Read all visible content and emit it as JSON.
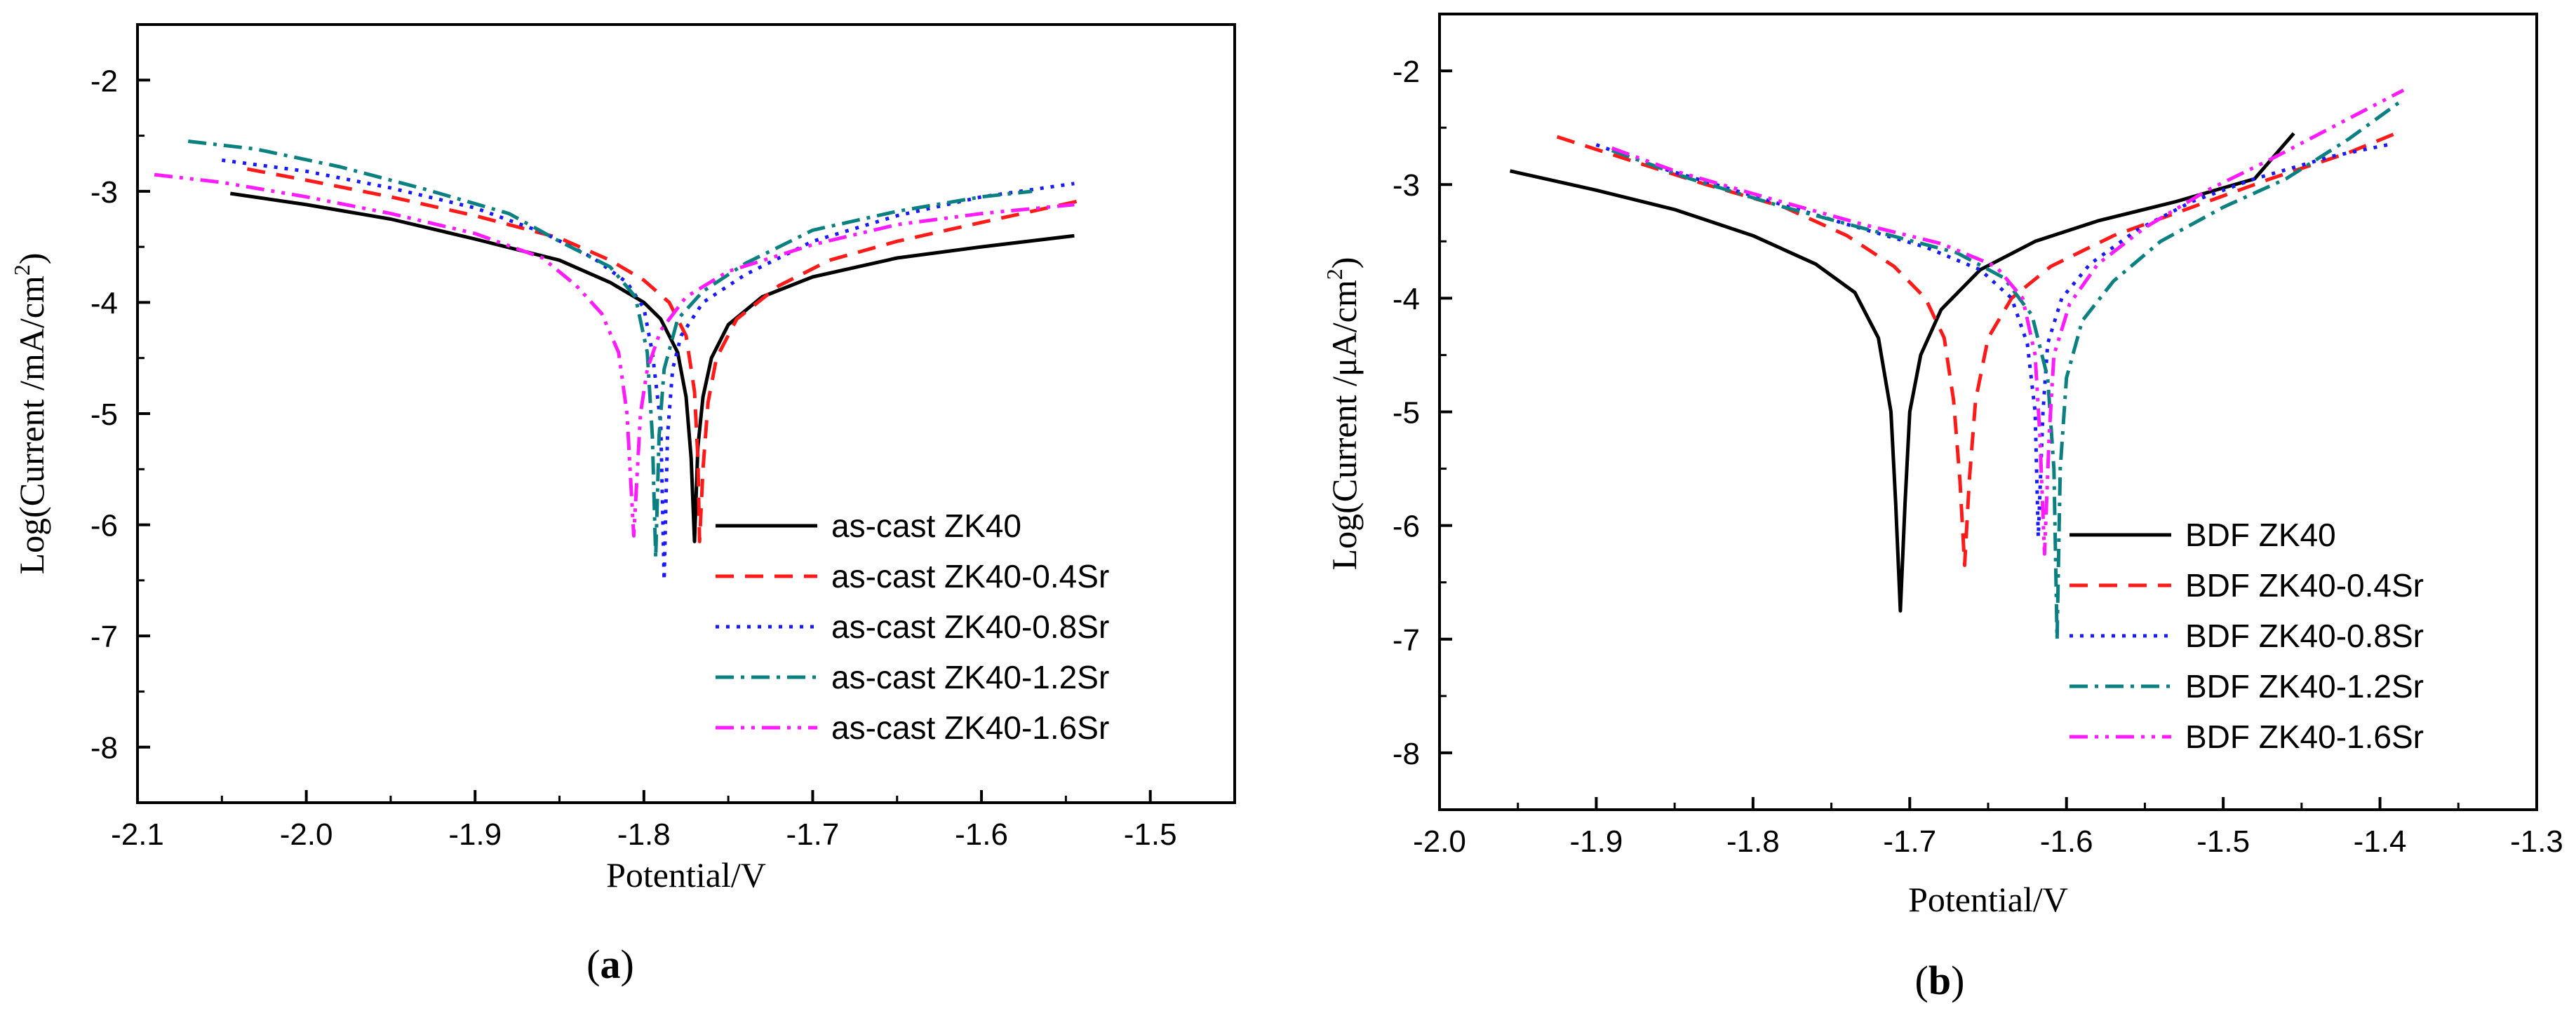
{
  "chart_data": [
    {
      "type": "line",
      "panel_label": "a",
      "xlabel": "Potential/V",
      "ylabel_main": "Log(Current /mA/cm",
      "ylabel_sup": "2",
      "ylabel_close": ")",
      "xlim": [
        -2.1,
        -1.45
      ],
      "ylim": [
        -8.5,
        -1.5
      ],
      "xticks": [
        -2.1,
        -2.0,
        -1.9,
        -1.8,
        -1.7,
        -1.6,
        -1.5
      ],
      "xtick_labels": [
        "-2.1",
        "-2.0",
        "-1.9",
        "-1.8",
        "-1.7",
        "-1.6",
        "-1.5"
      ],
      "yticks": [
        -8,
        -7,
        -6,
        -5,
        -4,
        -3,
        -2
      ],
      "ytick_labels": [
        "-8",
        "-7",
        "-6",
        "-5",
        "-4",
        "-3",
        "-2"
      ],
      "legend_position": "bottom-right",
      "series": [
        {
          "name": "as-cast ZK40",
          "color": "#000000",
          "dash": "solid",
          "ecorr": -1.77,
          "imin": -6.15,
          "cathodic": [
            [
              -2.045,
              -3.02
            ],
            [
              -2.0,
              -3.12
            ],
            [
              -1.95,
              -3.25
            ],
            [
              -1.9,
              -3.43
            ],
            [
              -1.85,
              -3.62
            ],
            [
              -1.82,
              -3.82
            ],
            [
              -1.8,
              -4.0
            ],
            [
              -1.79,
              -4.15
            ],
            [
              -1.78,
              -4.45
            ],
            [
              -1.775,
              -4.85
            ],
            [
              -1.772,
              -5.4
            ]
          ],
          "anodic": [
            [
              -1.768,
              -5.3
            ],
            [
              -1.765,
              -4.85
            ],
            [
              -1.76,
              -4.5
            ],
            [
              -1.75,
              -4.2
            ],
            [
              -1.73,
              -3.95
            ],
            [
              -1.7,
              -3.77
            ],
            [
              -1.65,
              -3.6
            ],
            [
              -1.6,
              -3.5
            ],
            [
              -1.545,
              -3.4
            ]
          ]
        },
        {
          "name": "as-cast ZK40-0.4Sr",
          "color": "#ff1a1a",
          "dash": "dashed",
          "ecorr": -1.767,
          "imin": -6.15,
          "cathodic": [
            [
              -2.035,
              -2.8
            ],
            [
              -2.0,
              -2.9
            ],
            [
              -1.95,
              -3.05
            ],
            [
              -1.9,
              -3.22
            ],
            [
              -1.85,
              -3.42
            ],
            [
              -1.82,
              -3.62
            ],
            [
              -1.8,
              -3.8
            ],
            [
              -1.785,
              -4.0
            ],
            [
              -1.775,
              -4.3
            ],
            [
              -1.77,
              -4.8
            ],
            [
              -1.768,
              -5.4
            ]
          ],
          "anodic": [
            [
              -1.765,
              -5.5
            ],
            [
              -1.762,
              -4.9
            ],
            [
              -1.757,
              -4.5
            ],
            [
              -1.745,
              -4.15
            ],
            [
              -1.72,
              -3.85
            ],
            [
              -1.69,
              -3.62
            ],
            [
              -1.65,
              -3.45
            ],
            [
              -1.6,
              -3.28
            ],
            [
              -1.54,
              -3.08
            ]
          ]
        },
        {
          "name": "as-cast ZK40-0.8Sr",
          "color": "#1a1aff",
          "dash": "dotted",
          "ecorr": -1.788,
          "imin": -6.5,
          "cathodic": [
            [
              -2.05,
              -2.72
            ],
            [
              -2.0,
              -2.82
            ],
            [
              -1.95,
              -2.97
            ],
            [
              -1.9,
              -3.15
            ],
            [
              -1.86,
              -3.37
            ],
            [
              -1.83,
              -3.6
            ],
            [
              -1.81,
              -3.82
            ],
            [
              -1.8,
              -4.05
            ],
            [
              -1.795,
              -4.45
            ],
            [
              -1.79,
              -5.1
            ]
          ],
          "anodic": [
            [
              -1.786,
              -5.2
            ],
            [
              -1.783,
              -4.6
            ],
            [
              -1.778,
              -4.3
            ],
            [
              -1.765,
              -4.0
            ],
            [
              -1.74,
              -3.75
            ],
            [
              -1.7,
              -3.45
            ],
            [
              -1.65,
              -3.22
            ],
            [
              -1.6,
              -3.05
            ],
            [
              -1.545,
              -2.93
            ]
          ]
        },
        {
          "name": "as-cast ZK40-1.2Sr",
          "color": "#0a8080",
          "dash": "dashdot",
          "ecorr": -1.793,
          "imin": -6.3,
          "cathodic": [
            [
              -2.07,
              -2.55
            ],
            [
              -2.03,
              -2.62
            ],
            [
              -1.98,
              -2.78
            ],
            [
              -1.93,
              -2.98
            ],
            [
              -1.88,
              -3.2
            ],
            [
              -1.85,
              -3.45
            ],
            [
              -1.82,
              -3.68
            ],
            [
              -1.805,
              -3.95
            ],
            [
              -1.798,
              -4.45
            ],
            [
              -1.795,
              -5.2
            ]
          ],
          "anodic": [
            [
              -1.791,
              -5.2
            ],
            [
              -1.788,
              -4.6
            ],
            [
              -1.78,
              -4.15
            ],
            [
              -1.765,
              -3.9
            ],
            [
              -1.74,
              -3.65
            ],
            [
              -1.7,
              -3.35
            ],
            [
              -1.65,
              -3.18
            ],
            [
              -1.6,
              -3.05
            ],
            [
              -1.57,
              -3.0
            ]
          ]
        },
        {
          "name": "as-cast ZK40-1.6Sr",
          "color": "#ff1aff",
          "dash": "dashdotdot",
          "ecorr": -1.806,
          "imin": -6.1,
          "cathodic": [
            [
              -2.09,
              -2.85
            ],
            [
              -2.05,
              -2.92
            ],
            [
              -2.0,
              -3.05
            ],
            [
              -1.95,
              -3.2
            ],
            [
              -1.9,
              -3.38
            ],
            [
              -1.86,
              -3.6
            ],
            [
              -1.84,
              -3.85
            ],
            [
              -1.825,
              -4.1
            ],
            [
              -1.815,
              -4.45
            ],
            [
              -1.81,
              -5.0
            ]
          ],
          "anodic": [
            [
              -1.802,
              -5.0
            ],
            [
              -1.798,
              -4.6
            ],
            [
              -1.79,
              -4.25
            ],
            [
              -1.775,
              -3.95
            ],
            [
              -1.75,
              -3.72
            ],
            [
              -1.7,
              -3.48
            ],
            [
              -1.65,
              -3.3
            ],
            [
              -1.6,
              -3.2
            ],
            [
              -1.545,
              -3.12
            ]
          ]
        }
      ]
    },
    {
      "type": "line",
      "panel_label": "b",
      "xlabel": "Potential/V",
      "ylabel_main": "Log(Current /μA/cm",
      "ylabel_sup": "2",
      "ylabel_close": ")",
      "xlim": [
        -2.0,
        -1.3
      ],
      "ylim": [
        -8.5,
        -1.5
      ],
      "xticks": [
        -2.0,
        -1.9,
        -1.8,
        -1.7,
        -1.6,
        -1.5,
        -1.4,
        -1.3
      ],
      "xtick_labels": [
        "-2.0",
        "-1.9",
        "-1.8",
        "-1.7",
        "-1.6",
        "-1.5",
        "-1.4",
        "-1.3"
      ],
      "yticks": [
        -8,
        -7,
        -6,
        -5,
        -4,
        -3,
        -2
      ],
      "ytick_labels": [
        "-8",
        "-7",
        "-6",
        "-5",
        "-4",
        "-3",
        "-2"
      ],
      "legend_position": "bottom-right",
      "series": [
        {
          "name": "BDF ZK40",
          "color": "#000000",
          "dash": "solid",
          "ecorr": -1.706,
          "imin": -6.75,
          "cathodic": [
            [
              -1.955,
              -2.88
            ],
            [
              -1.9,
              -3.05
            ],
            [
              -1.85,
              -3.22
            ],
            [
              -1.8,
              -3.45
            ],
            [
              -1.76,
              -3.7
            ],
            [
              -1.735,
              -3.95
            ],
            [
              -1.72,
              -4.35
            ],
            [
              -1.712,
              -5.0
            ],
            [
              -1.709,
              -5.8
            ]
          ],
          "anodic": [
            [
              -1.703,
              -5.8
            ],
            [
              -1.7,
              -5.0
            ],
            [
              -1.693,
              -4.5
            ],
            [
              -1.68,
              -4.1
            ],
            [
              -1.655,
              -3.75
            ],
            [
              -1.62,
              -3.5
            ],
            [
              -1.58,
              -3.32
            ],
            [
              -1.53,
              -3.15
            ],
            [
              -1.48,
              -2.95
            ],
            [
              -1.455,
              -2.55
            ]
          ]
        },
        {
          "name": "BDF ZK40-0.4Sr",
          "color": "#ff1a1a",
          "dash": "dashed",
          "ecorr": -1.665,
          "imin": -6.35,
          "cathodic": [
            [
              -1.925,
              -2.58
            ],
            [
              -1.88,
              -2.78
            ],
            [
              -1.83,
              -3.0
            ],
            [
              -1.78,
              -3.2
            ],
            [
              -1.74,
              -3.45
            ],
            [
              -1.71,
              -3.72
            ],
            [
              -1.69,
              -4.0
            ],
            [
              -1.678,
              -4.35
            ],
            [
              -1.672,
              -4.9
            ],
            [
              -1.668,
              -5.6
            ]
          ],
          "anodic": [
            [
              -1.662,
              -5.6
            ],
            [
              -1.658,
              -4.9
            ],
            [
              -1.65,
              -4.35
            ],
            [
              -1.635,
              -4.0
            ],
            [
              -1.61,
              -3.72
            ],
            [
              -1.57,
              -3.45
            ],
            [
              -1.52,
              -3.2
            ],
            [
              -1.47,
              -2.95
            ],
            [
              -1.42,
              -2.72
            ],
            [
              -1.39,
              -2.55
            ]
          ]
        },
        {
          "name": "BDF ZK40-0.8Sr",
          "color": "#1a1aff",
          "dash": "dotted",
          "ecorr": -1.618,
          "imin": -6.1,
          "cathodic": [
            [
              -1.9,
              -2.65
            ],
            [
              -1.86,
              -2.85
            ],
            [
              -1.8,
              -3.1
            ],
            [
              -1.74,
              -3.35
            ],
            [
              -1.69,
              -3.55
            ],
            [
              -1.655,
              -3.75
            ],
            [
              -1.635,
              -4.0
            ],
            [
              -1.625,
              -4.4
            ],
            [
              -1.62,
              -5.0
            ]
          ],
          "anodic": [
            [
              -1.615,
              -5.0
            ],
            [
              -1.612,
              -4.4
            ],
            [
              -1.603,
              -4.0
            ],
            [
              -1.585,
              -3.7
            ],
            [
              -1.555,
              -3.4
            ],
            [
              -1.52,
              -3.15
            ],
            [
              -1.48,
              -2.95
            ],
            [
              -1.43,
              -2.75
            ],
            [
              -1.395,
              -2.65
            ]
          ]
        },
        {
          "name": "BDF ZK40-1.2Sr",
          "color": "#0a8080",
          "dash": "dashdot",
          "ecorr": -1.606,
          "imin": -7.0,
          "cathodic": [
            [
              -1.89,
              -2.7
            ],
            [
              -1.84,
              -2.95
            ],
            [
              -1.78,
              -3.2
            ],
            [
              -1.72,
              -3.42
            ],
            [
              -1.67,
              -3.6
            ],
            [
              -1.64,
              -3.82
            ],
            [
              -1.622,
              -4.15
            ],
            [
              -1.612,
              -4.7
            ],
            [
              -1.608,
              -5.5
            ]
          ],
          "anodic": [
            [
              -1.604,
              -5.5
            ],
            [
              -1.6,
              -4.7
            ],
            [
              -1.59,
              -4.2
            ],
            [
              -1.57,
              -3.85
            ],
            [
              -1.54,
              -3.5
            ],
            [
              -1.5,
              -3.2
            ],
            [
              -1.46,
              -2.95
            ],
            [
              -1.42,
              -2.6
            ],
            [
              -1.385,
              -2.25
            ]
          ]
        },
        {
          "name": "BDF ZK40-1.6Sr",
          "color": "#ff1aff",
          "dash": "dashdotdot",
          "ecorr": -1.614,
          "imin": -6.25,
          "cathodic": [
            [
              -1.89,
              -2.68
            ],
            [
              -1.85,
              -2.88
            ],
            [
              -1.79,
              -3.12
            ],
            [
              -1.73,
              -3.35
            ],
            [
              -1.68,
              -3.52
            ],
            [
              -1.645,
              -3.72
            ],
            [
              -1.628,
              -4.0
            ],
            [
              -1.62,
              -4.5
            ],
            [
              -1.617,
              -5.2
            ]
          ],
          "anodic": [
            [
              -1.611,
              -5.2
            ],
            [
              -1.608,
              -4.5
            ],
            [
              -1.598,
              -4.05
            ],
            [
              -1.58,
              -3.7
            ],
            [
              -1.55,
              -3.38
            ],
            [
              -1.51,
              -3.05
            ],
            [
              -1.47,
              -2.78
            ],
            [
              -1.42,
              -2.42
            ],
            [
              -1.385,
              -2.17
            ]
          ]
        }
      ]
    }
  ]
}
